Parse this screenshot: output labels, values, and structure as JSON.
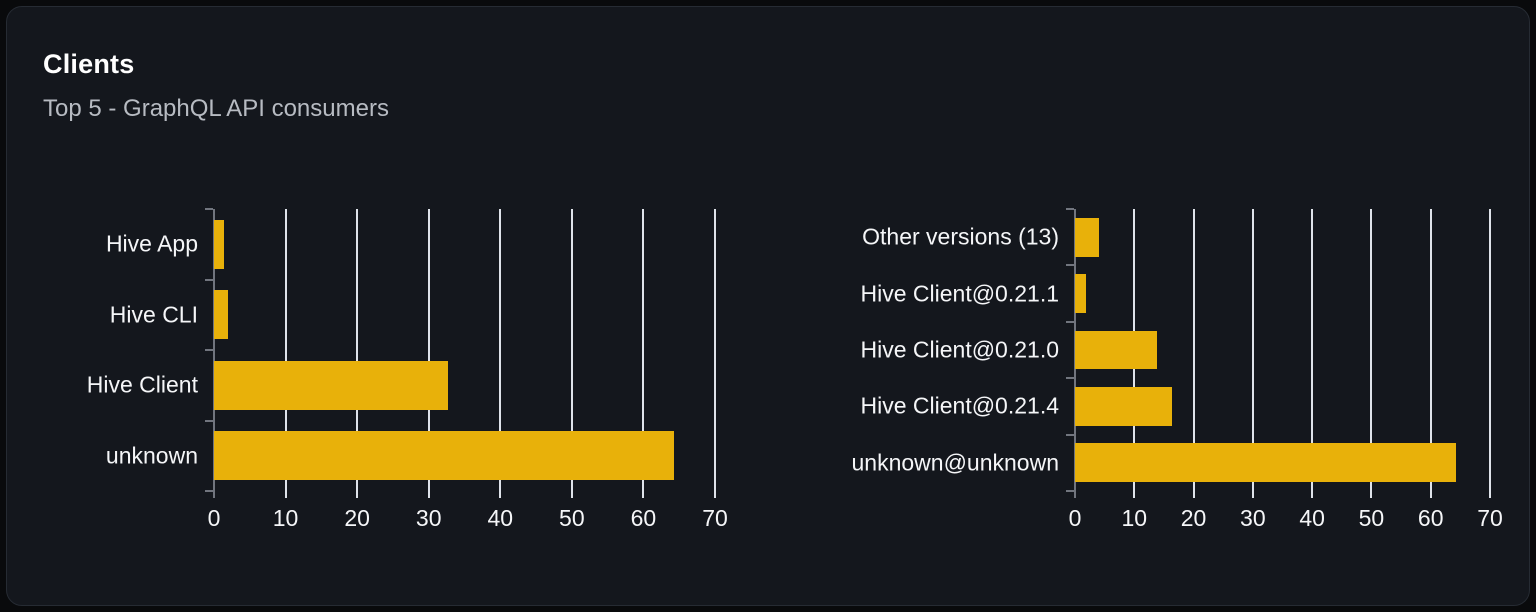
{
  "card": {
    "title": "Clients",
    "subtitle": "Top 5 - GraphQL API consumers"
  },
  "theme": {
    "page_bg": "#090a0c",
    "card_bg": "#14171d",
    "bar_color": "#e8b10a",
    "grid_color": "#dfe3ea",
    "axis_color": "#71757e",
    "label_color": "#f5f6f8",
    "muted_text": "#b7bbc2"
  },
  "chart_data": [
    {
      "type": "bar",
      "orientation": "horizontal",
      "name": "clients-by-name",
      "title": "",
      "xlabel": "",
      "ylabel": "",
      "categories": [
        "Hive App",
        "Hive CLI",
        "Hive Client",
        "unknown"
      ],
      "values": [
        1.4,
        2,
        32.7,
        64.3
      ],
      "xlim": [
        0,
        70
      ],
      "xticks": [
        0,
        10,
        20,
        30,
        40,
        50,
        60,
        70
      ],
      "grid": true,
      "legend": false
    },
    {
      "type": "bar",
      "orientation": "horizontal",
      "name": "clients-by-version",
      "title": "",
      "xlabel": "",
      "ylabel": "",
      "categories": [
        "Other versions (13)",
        "Hive Client@0.21.1",
        "Hive Client@0.21.0",
        "Hive Client@0.21.4",
        "unknown@unknown"
      ],
      "values": [
        4,
        1.9,
        13.8,
        16.3,
        64.3
      ],
      "xlim": [
        0,
        70
      ],
      "xticks": [
        0,
        10,
        20,
        30,
        40,
        50,
        60,
        70
      ],
      "grid": true,
      "legend": false
    }
  ]
}
